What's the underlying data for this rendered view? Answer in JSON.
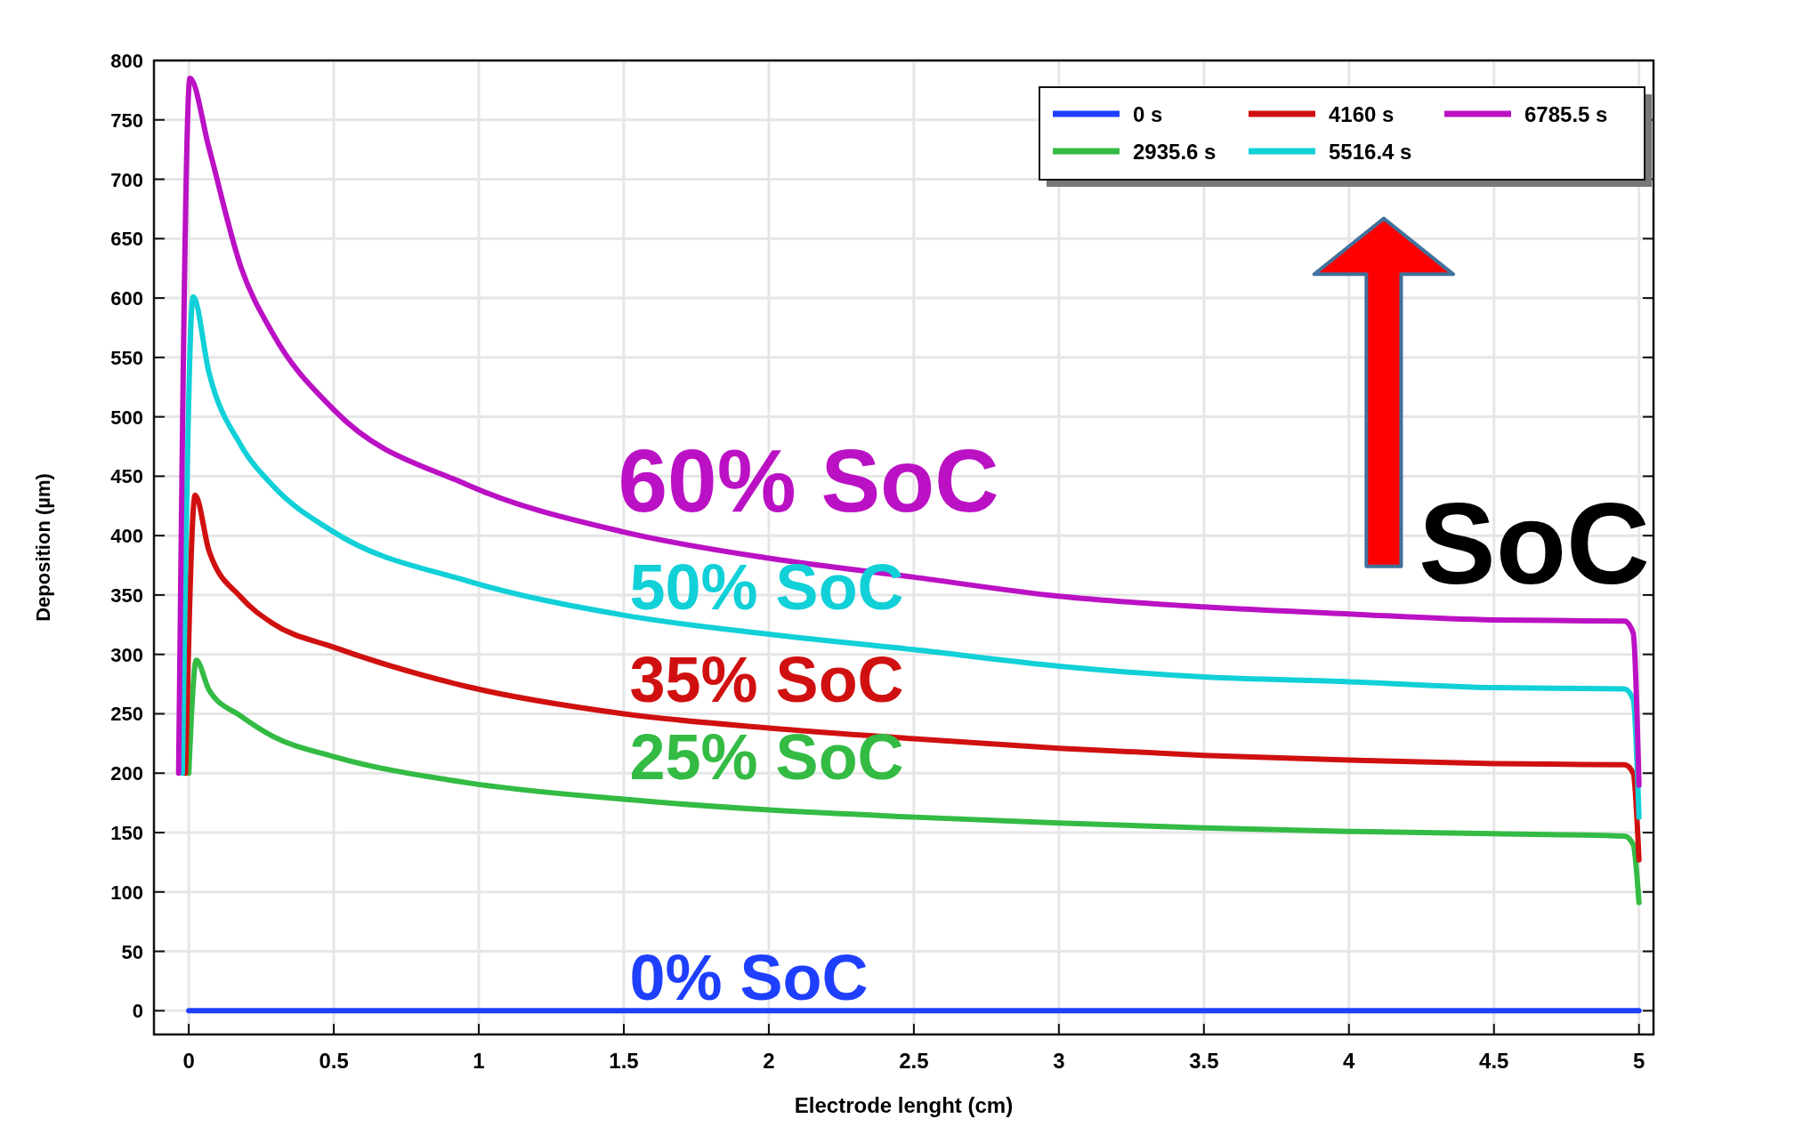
{
  "chart_data": {
    "type": "line",
    "xlabel": "Electrode lenght (cm)",
    "ylabel": "Deposition (µm)",
    "xlim": [
      -0.12,
      5.05
    ],
    "ylim": [
      -20,
      800
    ],
    "xticks": [
      0,
      0.5,
      1,
      1.5,
      2,
      2.5,
      3,
      3.5,
      4,
      4.5,
      5
    ],
    "yticks": [
      0,
      50,
      100,
      150,
      200,
      250,
      300,
      350,
      400,
      450,
      500,
      550,
      600,
      650,
      700,
      750,
      800
    ],
    "grid": true,
    "legend": "top right",
    "line_style": "solid",
    "marker": "none",
    "series": [
      {
        "name": "0 s",
        "color": "#1f3fff",
        "x": [
          0,
          5
        ],
        "values": [
          0,
          0
        ]
      },
      {
        "name": "2935.6 s",
        "color": "#33bb44",
        "x": [
          0,
          0.026,
          0.07,
          0.18,
          0.29,
          0.5,
          0.958,
          1.5,
          2,
          2.5,
          3,
          3.5,
          4,
          4.5,
          4.95,
          4.98,
          5.0
        ],
        "values": [
          200,
          295,
          270,
          248,
          231,
          214,
          192,
          178,
          169,
          163,
          158,
          154,
          151,
          149,
          147,
          140,
          91
        ]
      },
      {
        "name": "4160 s",
        "color": "#d01010",
        "x": [
          -0.011,
          0.022,
          0.07,
          0.18,
          0.29,
          0.5,
          0.958,
          1.5,
          2,
          2.5,
          3,
          3.5,
          4,
          4.5,
          4.95,
          4.98,
          5.0
        ],
        "values": [
          200,
          434,
          387,
          348,
          326,
          306,
          273,
          250,
          238,
          229,
          221,
          215,
          211,
          208,
          207,
          200,
          127
        ]
      },
      {
        "name": "5516.4 s",
        "color": "#11d0d8",
        "x": [
          -0.022,
          0.015,
          0.07,
          0.18,
          0.29,
          0.5,
          0.958,
          1.5,
          2,
          2.5,
          3,
          3.5,
          4,
          4.5,
          4.95,
          4.98,
          5.0
        ],
        "values": [
          200,
          601,
          537,
          476,
          442,
          403,
          362,
          333,
          317,
          304,
          290,
          281,
          277,
          272,
          271,
          262,
          163
        ]
      },
      {
        "name": "6785.5 s",
        "color": "#bb11c4",
        "x": [
          -0.035,
          0.004,
          0.07,
          0.18,
          0.29,
          0.5,
          0.958,
          1.5,
          2,
          2.5,
          3,
          3.5,
          4,
          4.5,
          4.95,
          4.98,
          5.0
        ],
        "values": [
          200,
          785,
          726,
          626,
          570,
          506,
          443,
          403,
          381,
          365,
          349,
          340,
          334,
          329,
          328,
          318,
          190
        ]
      }
    ],
    "annotations": [
      "0% SoC",
      "25% SoC",
      "35% SoC",
      "50% SoC",
      "60% SoC",
      "SoC"
    ]
  }
}
